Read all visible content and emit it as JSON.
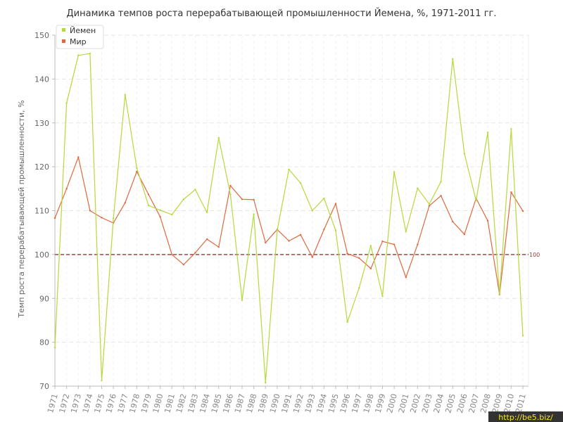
{
  "chart_data": {
    "type": "line",
    "title": "Динамика темпов роста перерабатывающей промышленности Йемена, %, 1971-2011 гг.",
    "xlabel": "",
    "ylabel": "Темп роста перерабатывающей промышленности, %",
    "ylim": [
      70,
      150
    ],
    "yticks": [
      70,
      80,
      90,
      100,
      110,
      120,
      130,
      140,
      150
    ],
    "grid": true,
    "legend_position": "top-left",
    "reference_line": {
      "value": 100,
      "label": "100",
      "color": "#a04848"
    },
    "x": [
      "1971",
      "1972",
      "1973",
      "1974",
      "1975",
      "1976",
      "1977",
      "1978",
      "1979",
      "1980",
      "1981",
      "1982",
      "1983",
      "1984",
      "1985",
      "1986",
      "1987",
      "1988",
      "1989",
      "1990",
      "1991",
      "1992",
      "1993",
      "1994",
      "1995",
      "1996",
      "1997",
      "1998",
      "1999",
      "2000",
      "2001",
      "2002",
      "2003",
      "2004",
      "2005",
      "2006",
      "2007",
      "2008",
      "2009",
      "2010",
      "2011"
    ],
    "series": [
      {
        "name": "Йемен",
        "color": "#b5d93b",
        "values": [
          78.8,
          134.5,
          145.4,
          145.8,
          71.3,
          108.2,
          136.4,
          119.7,
          111.2,
          110.1,
          109.1,
          112.6,
          114.8,
          109.6,
          126.6,
          113.7,
          89.6,
          109.2,
          70.8,
          105.5,
          119.4,
          116.3,
          110.0,
          112.8,
          105.5,
          84.6,
          92.4,
          102.0,
          90.5,
          118.8,
          105.2,
          115.1,
          111.5,
          116.6,
          144.6,
          123.0,
          112.3,
          127.8,
          91.0,
          128.6,
          81.5
        ]
      },
      {
        "name": "Мир",
        "color": "#e0683c",
        "values": [
          108.3,
          115.0,
          122.2,
          110.0,
          108.4,
          107.2,
          111.8,
          118.9,
          113.7,
          108.6,
          100.0,
          97.7,
          100.4,
          103.5,
          101.7,
          115.7,
          112.6,
          112.5,
          102.7,
          105.7,
          103.1,
          104.5,
          99.4,
          105.7,
          111.6,
          100.2,
          99.2,
          96.8,
          103.0,
          102.3,
          94.8,
          102.3,
          111.1,
          113.4,
          107.5,
          104.6,
          112.8,
          107.7,
          90.9,
          114.2,
          109.9
        ]
      }
    ]
  },
  "watermark": "http://be5.biz/"
}
